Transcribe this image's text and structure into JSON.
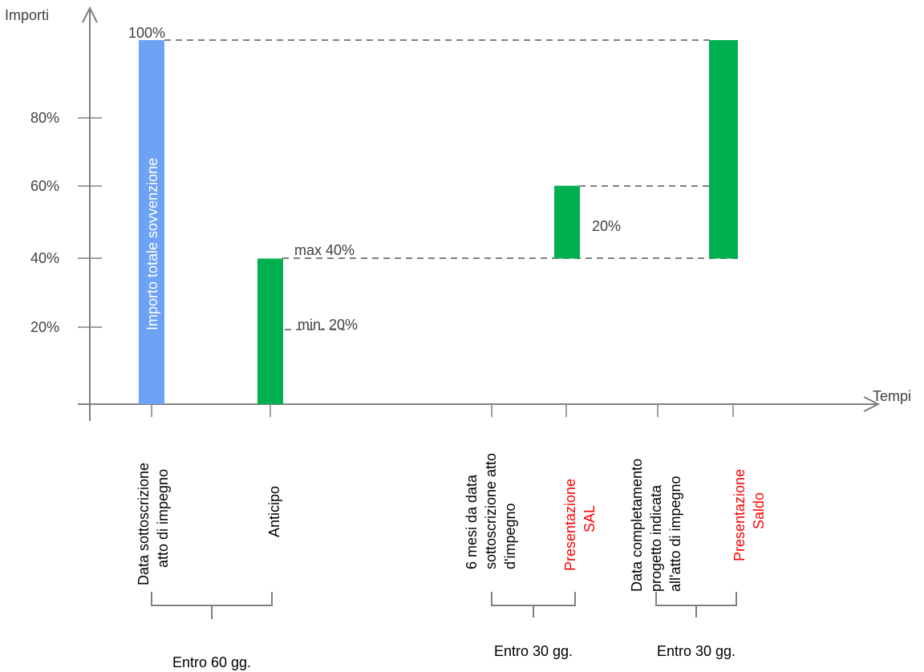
{
  "chart_data": {
    "type": "bar",
    "title": "",
    "ylabel": "Importi",
    "xlabel": "Tempi",
    "ylim": [
      0,
      100
    ],
    "y_ticks": [
      "20%",
      "40%",
      "60%",
      "80%"
    ],
    "bars": [
      {
        "id": "total",
        "from": 0,
        "to": 100,
        "color": "#6ea3f4",
        "inner_label": "Importo totale sovvenzione",
        "top_label": "100%"
      },
      {
        "id": "anticipo",
        "from": 0,
        "to": 40,
        "color": "#00b050",
        "labels": [
          "max 40%",
          "min. 20%"
        ]
      },
      {
        "id": "sal",
        "from": 40,
        "to": 60,
        "color": "#00b050",
        "side_label": "20%"
      },
      {
        "id": "saldo",
        "from": 40,
        "to": 100,
        "color": "#00b050"
      }
    ],
    "milestones": [
      {
        "lines": [
          "Data  sottoscrizione",
          "atto di impegno"
        ],
        "color": "#000000"
      },
      {
        "lines": [
          "Anticipo"
        ],
        "color": "#000000"
      },
      {
        "lines": [
          "6 mesi da data",
          "sottoscrizione  atto",
          "d'impegno"
        ],
        "color": "#000000"
      },
      {
        "lines": [
          "Presentazione",
          "SAL"
        ],
        "color": "#ff0000"
      },
      {
        "lines": [
          "Data completamento",
          "progetto indicata",
          "all'atto di impegno"
        ],
        "color": "#000000"
      },
      {
        "lines": [
          "Presentazione",
          "Saldo"
        ],
        "color": "#ff0000"
      }
    ],
    "intervals": [
      {
        "label": "Entro 60 gg."
      },
      {
        "label": "Entro 30 gg."
      },
      {
        "label": "Entro 30 gg."
      }
    ],
    "grid": false,
    "colors": {
      "axis": "#808080",
      "dash": "#808080",
      "text": "#404040"
    }
  }
}
